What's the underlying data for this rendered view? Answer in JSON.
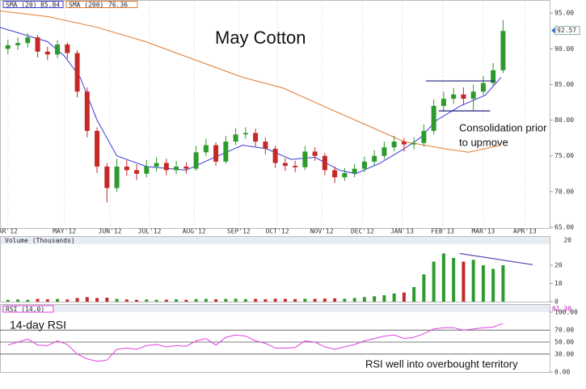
{
  "chart_data": [
    {
      "type": "candlestick",
      "title": "May Cotton",
      "annotations": [
        "Consolidation prior",
        "to upmove"
      ],
      "open": [
        90.0,
        90.5,
        90.8,
        91.6,
        89.6,
        89.2,
        90.6,
        89.4,
        84.0,
        78.5,
        73.5,
        70.5,
        73.5,
        73.0,
        72.5,
        73.5,
        74.0,
        73.0,
        73.5,
        73.2,
        75.5,
        76.5,
        74.2,
        77.0,
        78.0,
        78.2,
        77.0,
        76.0,
        74.0,
        73.6,
        73.4,
        75.6,
        75.0,
        73.0,
        72.0,
        72.6,
        73.2,
        74.2,
        75.0,
        76.2,
        77.0,
        76.6,
        76.8,
        78.5,
        82.0,
        83.0,
        83.6,
        83.0,
        84.0,
        85.2,
        87.0
      ],
      "high": [
        91.3,
        91.6,
        92.2,
        91.9,
        90.3,
        91.2,
        90.9,
        89.8,
        84.6,
        79.0,
        74.0,
        74.6,
        74.4,
        73.8,
        74.4,
        74.8,
        74.6,
        74.3,
        74.1,
        76.4,
        77.4,
        76.9,
        77.8,
        78.9,
        79.0,
        78.8,
        77.6,
        76.4,
        74.7,
        74.3,
        76.4,
        76.2,
        75.4,
        73.5,
        73.3,
        73.9,
        74.9,
        75.8,
        77.0,
        77.8,
        77.5,
        77.6,
        79.4,
        82.9,
        84.0,
        84.5,
        84.6,
        85.0,
        86.2,
        88.0,
        94.0
      ],
      "low": [
        89.2,
        89.8,
        90.2,
        88.8,
        88.4,
        88.7,
        88.6,
        83.2,
        77.6,
        72.6,
        68.5,
        70.0,
        72.2,
        71.6,
        72.0,
        72.8,
        72.3,
        72.4,
        72.5,
        72.9,
        75.0,
        73.6,
        73.9,
        76.5,
        77.4,
        76.3,
        75.2,
        73.3,
        72.9,
        72.7,
        73.0,
        74.3,
        72.3,
        71.2,
        71.5,
        72.0,
        72.7,
        73.6,
        74.5,
        75.6,
        75.6,
        75.9,
        76.3,
        78.0,
        81.2,
        82.3,
        82.1,
        81.4,
        83.5,
        84.8,
        86.6
      ],
      "close": [
        90.5,
        90.8,
        91.6,
        89.6,
        89.2,
        90.6,
        89.4,
        84.0,
        78.5,
        73.5,
        70.5,
        73.5,
        73.0,
        72.5,
        73.5,
        74.0,
        73.0,
        73.5,
        73.2,
        75.5,
        76.5,
        74.2,
        77.0,
        78.0,
        78.2,
        77.0,
        76.0,
        74.0,
        73.6,
        73.4,
        75.6,
        75.0,
        73.0,
        72.0,
        72.6,
        73.2,
        74.2,
        75.0,
        76.2,
        77.0,
        76.6,
        76.8,
        78.5,
        82.0,
        83.0,
        83.6,
        83.0,
        84.0,
        85.2,
        87.0,
        92.5
      ],
      "up_color": "#2e9a2e",
      "down_color": "#c62828",
      "series": [
        {
          "name": "SMA (20)",
          "last": 85.84,
          "color": "#3a3ad8",
          "x": [
            -0.8,
            4,
            5.7,
            7.3,
            9,
            11,
            14,
            18,
            20.4,
            23.7,
            26.1,
            28.6,
            31,
            33.5,
            35.1,
            37.6,
            40,
            41.6,
            43.3,
            45.7,
            48.2,
            49.8
          ],
          "values": [
            93,
            91,
            89,
            86,
            80,
            75,
            73.5,
            73,
            74.5,
            76.5,
            76,
            74.5,
            74.8,
            73,
            72.5,
            74,
            76,
            77.5,
            80,
            82,
            83.5,
            86
          ]
        },
        {
          "name": "SMA (200)",
          "last": 76.36,
          "color": "#e07a30",
          "x": [
            -0.8,
            4.1,
            9,
            13.9,
            18.8,
            23.7,
            27.8,
            31.8,
            35.9,
            40,
            44.1,
            46.5,
            49.8
          ],
          "values": [
            95.3,
            94.5,
            93,
            91,
            88.5,
            86,
            84.5,
            82,
            79.5,
            77,
            76,
            75.5,
            76.5
          ]
        }
      ],
      "last_price": 92.57,
      "levels": [
        {
          "value": 85.5,
          "x": [
            42.2,
            49.2
          ]
        },
        {
          "value": 81.3,
          "x": [
            43.5,
            48.7
          ]
        }
      ],
      "level_color": "#202080",
      "xlim": [
        -0.8,
        54.7
      ],
      "xticks": [
        {
          "value": 0,
          "label": "AR'12"
        },
        {
          "value": 5.7,
          "label": "MAY'12"
        },
        {
          "value": 10.3,
          "label": "JUN'12"
        },
        {
          "value": 14.3,
          "label": "JUL'12"
        },
        {
          "value": 18.8,
          "label": "AUG'12"
        },
        {
          "value": 23.3,
          "label": "SEP'12"
        },
        {
          "value": 27.2,
          "label": "OCT'12"
        },
        {
          "value": 31.7,
          "label": "NOV'12"
        },
        {
          "value": 35.8,
          "label": "DEC'12"
        },
        {
          "value": 39.8,
          "label": "JAN'13"
        },
        {
          "value": 43.9,
          "label": "FEB'13"
        },
        {
          "value": 48,
          "label": "MAR'13"
        },
        {
          "value": 52.2,
          "label": "APR'13"
        }
      ],
      "ylim": [
        65,
        95.7
      ],
      "yticks": [
        {
          "value": 65,
          "label": "65.00"
        },
        {
          "value": 70,
          "label": "70.00"
        },
        {
          "value": 75,
          "label": "75.00"
        },
        {
          "value": 80,
          "label": "80.00"
        },
        {
          "value": 85,
          "label": "85.00"
        },
        {
          "value": 90,
          "label": "90.00"
        },
        {
          "value": 95,
          "label": "95.00"
        }
      ],
      "grid": true
    },
    {
      "type": "bar",
      "title": "Volume (Thousands)",
      "last": 20,
      "values": [
        1,
        1.2,
        1,
        1.5,
        1.3,
        1.5,
        1.2,
        2,
        2.5,
        2,
        2.2,
        1.5,
        1.2,
        1,
        1.2,
        1,
        1.1,
        1.3,
        1,
        1.4,
        1.5,
        1.3,
        1.5,
        1.6,
        1.4,
        1.5,
        1.3,
        1.6,
        1.5,
        1.4,
        1.6,
        1.5,
        1.7,
        1.8,
        1.6,
        2,
        2.5,
        3,
        3.5,
        4.5,
        5,
        8,
        15,
        22,
        26.5,
        24,
        22,
        23,
        20,
        18,
        20
      ],
      "trendline": {
        "x": [
          45.6,
          53
        ],
        "values": [
          26.5,
          20.3
        ],
        "color": "#5050b0"
      },
      "ylim": [
        0,
        32
      ],
      "yticks": [
        0,
        10,
        20
      ]
    },
    {
      "type": "line",
      "title": "RSI (14,0)",
      "last": 81.38,
      "color": "#e040e0",
      "annotations": [
        "14-day RSI",
        "RSI well into overbought territory"
      ],
      "values": [
        45,
        50,
        55,
        45,
        44,
        52,
        46,
        30,
        22,
        18,
        20,
        38,
        40,
        38,
        44,
        46,
        42,
        44,
        43,
        52,
        56,
        45,
        58,
        62,
        60,
        52,
        48,
        40,
        40,
        41,
        52,
        50,
        42,
        38,
        42,
        46,
        52,
        56,
        60,
        62,
        56,
        58,
        64,
        72,
        74,
        74,
        70,
        72,
        74,
        75,
        81.38
      ],
      "ylim": [
        0,
        100
      ],
      "yticks": [
        {
          "value": 0,
          "label": "0.00"
        },
        {
          "value": 30,
          "label": "30.00"
        },
        {
          "value": 50,
          "label": "50.00"
        },
        {
          "value": 70,
          "label": "70.00"
        },
        {
          "value": 100,
          "label": "100.00"
        }
      ],
      "grid": true
    }
  ]
}
